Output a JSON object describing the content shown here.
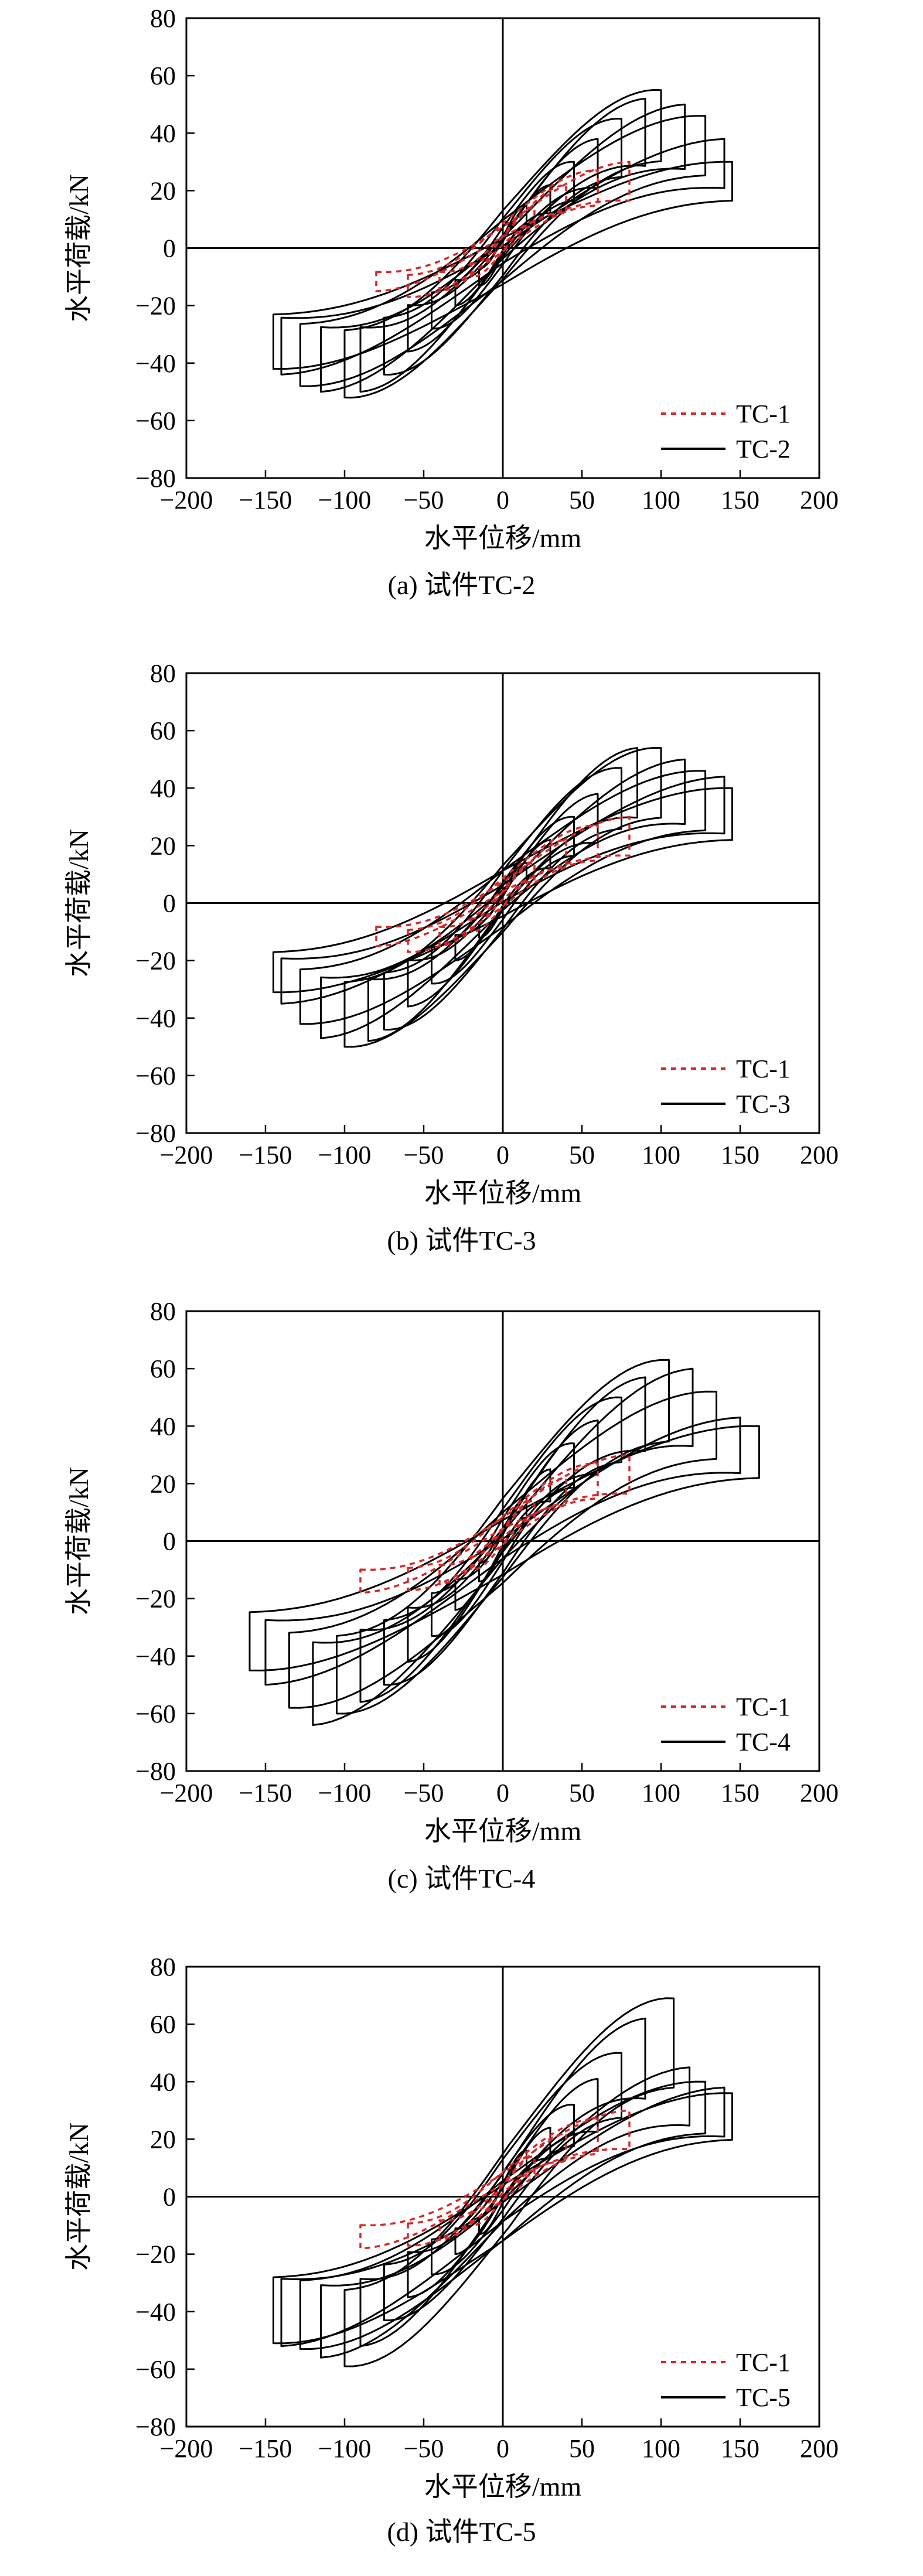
{
  "chart_data": [
    {
      "type": "line",
      "caption": "(a) 试件TC-2",
      "xlabel": "水平位移/mm",
      "ylabel": "水平荷载/kN",
      "xlim": [
        -200,
        200
      ],
      "ylim": [
        -80,
        80
      ],
      "xticks": [
        -200,
        -150,
        -100,
        -50,
        0,
        50,
        100,
        150,
        200
      ],
      "yticks": [
        -80,
        -60,
        -40,
        -20,
        0,
        20,
        40,
        60,
        80
      ],
      "legend": "bottom-right",
      "series": [
        {
          "name": "TC-1",
          "style": "dashed",
          "color": "#d62728",
          "loops": [
            {
              "amp_pos": 20,
              "peak_pos": 14,
              "amp_neg": -20,
              "peak_neg": -10
            },
            {
              "amp_pos": 40,
              "peak_pos": 22,
              "amp_neg": -40,
              "peak_neg": -15
            },
            {
              "amp_pos": 60,
              "peak_pos": 27,
              "amp_neg": -60,
              "peak_neg": -17
            },
            {
              "amp_pos": 80,
              "peak_pos": 30,
              "amp_neg": -80,
              "peak_neg": -15
            }
          ]
        },
        {
          "name": "TC-2",
          "style": "solid",
          "color": "#000000",
          "loops": [
            {
              "amp_pos": 15,
              "peak_pos": 15,
              "amp_neg": -15,
              "peak_neg": -13
            },
            {
              "amp_pos": 30,
              "peak_pos": 22,
              "amp_neg": -30,
              "peak_neg": -20
            },
            {
              "amp_pos": 45,
              "peak_pos": 30,
              "amp_neg": -45,
              "peak_neg": -28
            },
            {
              "amp_pos": 60,
              "peak_pos": 38,
              "amp_neg": -60,
              "peak_neg": -36
            },
            {
              "amp_pos": 75,
              "peak_pos": 45,
              "amp_neg": -75,
              "peak_neg": -44
            },
            {
              "amp_pos": 90,
              "peak_pos": 52,
              "amp_neg": -90,
              "peak_neg": -50
            },
            {
              "amp_pos": 100,
              "peak_pos": 55,
              "amp_neg": -100,
              "peak_neg": -52
            },
            {
              "amp_pos": 115,
              "peak_pos": 50,
              "amp_neg": -115,
              "peak_neg": -50
            },
            {
              "amp_pos": 128,
              "peak_pos": 46,
              "amp_neg": -128,
              "peak_neg": -48
            },
            {
              "amp_pos": 140,
              "peak_pos": 38,
              "amp_neg": -140,
              "peak_neg": -44
            },
            {
              "amp_pos": 145,
              "peak_pos": 30,
              "amp_neg": -145,
              "peak_neg": -42
            }
          ]
        }
      ]
    },
    {
      "type": "line",
      "caption": "(b) 试件TC-3",
      "xlabel": "水平位移/mm",
      "ylabel": "水平荷载/kN",
      "xlim": [
        -200,
        200
      ],
      "ylim": [
        -80,
        80
      ],
      "xticks": [
        -200,
        -150,
        -100,
        -50,
        0,
        50,
        100,
        150,
        200
      ],
      "yticks": [
        -80,
        -60,
        -40,
        -20,
        0,
        20,
        40,
        60,
        80
      ],
      "legend": "bottom-right",
      "series": [
        {
          "name": "TC-1",
          "style": "dashed",
          "color": "#d62728",
          "loops": [
            {
              "amp_pos": 20,
              "peak_pos": 14,
              "amp_neg": -20,
              "peak_neg": -10
            },
            {
              "amp_pos": 40,
              "peak_pos": 22,
              "amp_neg": -40,
              "peak_neg": -15
            },
            {
              "amp_pos": 60,
              "peak_pos": 27,
              "amp_neg": -60,
              "peak_neg": -17
            },
            {
              "amp_pos": 80,
              "peak_pos": 30,
              "amp_neg": -80,
              "peak_neg": -15
            }
          ]
        },
        {
          "name": "TC-3",
          "style": "solid",
          "color": "#000000",
          "loops": [
            {
              "amp_pos": 15,
              "peak_pos": 14,
              "amp_neg": -15,
              "peak_neg": -12
            },
            {
              "amp_pos": 30,
              "peak_pos": 22,
              "amp_neg": -30,
              "peak_neg": -20
            },
            {
              "amp_pos": 45,
              "peak_pos": 30,
              "amp_neg": -45,
              "peak_neg": -28
            },
            {
              "amp_pos": 60,
              "peak_pos": 38,
              "amp_neg": -60,
              "peak_neg": -36
            },
            {
              "amp_pos": 75,
              "peak_pos": 47,
              "amp_neg": -75,
              "peak_neg": -44
            },
            {
              "amp_pos": 85,
              "peak_pos": 54,
              "amp_neg": -85,
              "peak_neg": -48
            },
            {
              "amp_pos": 100,
              "peak_pos": 54,
              "amp_neg": -100,
              "peak_neg": -50
            },
            {
              "amp_pos": 115,
              "peak_pos": 50,
              "amp_neg": -115,
              "peak_neg": -47
            },
            {
              "amp_pos": 128,
              "peak_pos": 46,
              "amp_neg": -128,
              "peak_neg": -42
            },
            {
              "amp_pos": 140,
              "peak_pos": 44,
              "amp_neg": -140,
              "peak_neg": -35
            },
            {
              "amp_pos": 145,
              "peak_pos": 40,
              "amp_neg": -145,
              "peak_neg": -31
            }
          ]
        }
      ]
    },
    {
      "type": "line",
      "caption": "(c) 试件TC-4",
      "xlabel": "水平位移/mm",
      "ylabel": "水平荷载/kN",
      "xlim": [
        -200,
        200
      ],
      "ylim": [
        -80,
        80
      ],
      "xticks": [
        -200,
        -150,
        -100,
        -50,
        0,
        50,
        100,
        150,
        200
      ],
      "yticks": [
        -80,
        -60,
        -40,
        -20,
        0,
        20,
        40,
        60,
        80
      ],
      "legend": "bottom-right",
      "series": [
        {
          "name": "TC-1",
          "style": "dashed",
          "color": "#d62728",
          "loops": [
            {
              "amp_pos": 20,
              "peak_pos": 14,
              "amp_neg": -20,
              "peak_neg": -10
            },
            {
              "amp_pos": 40,
              "peak_pos": 22,
              "amp_neg": -40,
              "peak_neg": -15
            },
            {
              "amp_pos": 60,
              "peak_pos": 27,
              "amp_neg": -60,
              "peak_neg": -17
            },
            {
              "amp_pos": 80,
              "peak_pos": 30,
              "amp_neg": -90,
              "peak_neg": -18
            }
          ]
        },
        {
          "name": "TC-4",
          "style": "solid",
          "color": "#000000",
          "loops": [
            {
              "amp_pos": 15,
              "peak_pos": 15,
              "amp_neg": -15,
              "peak_neg": -14
            },
            {
              "amp_pos": 30,
              "peak_pos": 25,
              "amp_neg": -30,
              "peak_neg": -24
            },
            {
              "amp_pos": 45,
              "peak_pos": 34,
              "amp_neg": -45,
              "peak_neg": -33
            },
            {
              "amp_pos": 60,
              "peak_pos": 42,
              "amp_neg": -60,
              "peak_neg": -42
            },
            {
              "amp_pos": 75,
              "peak_pos": 50,
              "amp_neg": -75,
              "peak_neg": -50
            },
            {
              "amp_pos": 90,
              "peak_pos": 57,
              "amp_neg": -90,
              "peak_neg": -56
            },
            {
              "amp_pos": 105,
              "peak_pos": 63,
              "amp_neg": -105,
              "peak_neg": -60
            },
            {
              "amp_pos": 120,
              "peak_pos": 60,
              "amp_neg": -120,
              "peak_neg": -64
            },
            {
              "amp_pos": 135,
              "peak_pos": 52,
              "amp_neg": -135,
              "peak_neg": -58
            },
            {
              "amp_pos": 150,
              "peak_pos": 43,
              "amp_neg": -150,
              "peak_neg": -50
            },
            {
              "amp_pos": 162,
              "peak_pos": 40,
              "amp_neg": -160,
              "peak_neg": -45
            }
          ]
        }
      ]
    },
    {
      "type": "line",
      "caption": "(d) 试件TC-5",
      "xlabel": "水平位移/mm",
      "ylabel": "水平荷载/kN",
      "xlim": [
        -200,
        200
      ],
      "ylim": [
        -80,
        80
      ],
      "xticks": [
        -200,
        -150,
        -100,
        -50,
        0,
        50,
        100,
        150,
        200
      ],
      "yticks": [
        -80,
        -60,
        -40,
        -20,
        0,
        20,
        40,
        60,
        80
      ],
      "legend": "bottom-right",
      "series": [
        {
          "name": "TC-1",
          "style": "dashed",
          "color": "#d62728",
          "loops": [
            {
              "amp_pos": 20,
              "peak_pos": 14,
              "amp_neg": -20,
              "peak_neg": -10
            },
            {
              "amp_pos": 40,
              "peak_pos": 22,
              "amp_neg": -40,
              "peak_neg": -15
            },
            {
              "amp_pos": 60,
              "peak_pos": 27,
              "amp_neg": -60,
              "peak_neg": -17
            },
            {
              "amp_pos": 80,
              "peak_pos": 30,
              "amp_neg": -90,
              "peak_neg": -18
            }
          ]
        },
        {
          "name": "TC-5",
          "style": "solid",
          "color": "#000000",
          "loops": [
            {
              "amp_pos": 15,
              "peak_pos": 16,
              "amp_neg": -15,
              "peak_neg": -13
            },
            {
              "amp_pos": 30,
              "peak_pos": 24,
              "amp_neg": -30,
              "peak_neg": -20
            },
            {
              "amp_pos": 45,
              "peak_pos": 32,
              "amp_neg": -45,
              "peak_neg": -27
            },
            {
              "amp_pos": 60,
              "peak_pos": 41,
              "amp_neg": -60,
              "peak_neg": -35
            },
            {
              "amp_pos": 75,
              "peak_pos": 50,
              "amp_neg": -75,
              "peak_neg": -43
            },
            {
              "amp_pos": 90,
              "peak_pos": 62,
              "amp_neg": -90,
              "peak_neg": -52
            },
            {
              "amp_pos": 108,
              "peak_pos": 69,
              "amp_neg": -100,
              "peak_neg": -59
            },
            {
              "amp_pos": 118,
              "peak_pos": 45,
              "amp_neg": -115,
              "peak_neg": -56
            },
            {
              "amp_pos": 128,
              "peak_pos": 40,
              "amp_neg": -128,
              "peak_neg": -53
            },
            {
              "amp_pos": 140,
              "peak_pos": 38,
              "amp_neg": -140,
              "peak_neg": -52
            },
            {
              "amp_pos": 145,
              "peak_pos": 36,
              "amp_neg": -145,
              "peak_neg": -51
            }
          ]
        }
      ]
    }
  ]
}
